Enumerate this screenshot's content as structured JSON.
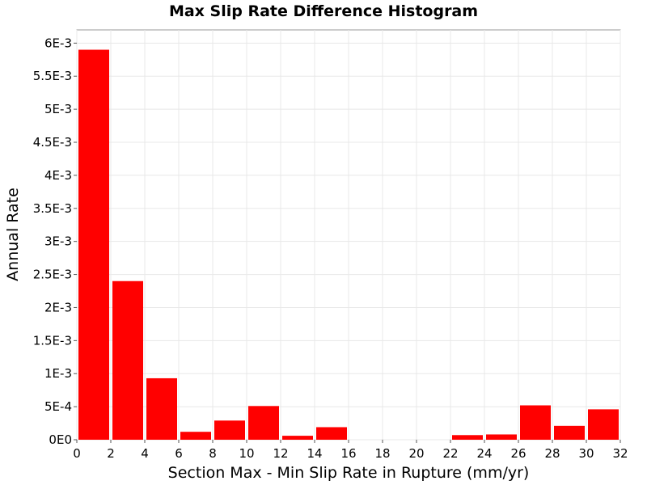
{
  "chart_data": {
    "type": "bar",
    "title": "Max Slip Rate Difference Histogram",
    "xlabel": "Section Max - Min Slip Rate in Rupture (mm/yr)",
    "ylabel": "Annual Rate",
    "xlim": [
      0,
      32
    ],
    "ylim": [
      0,
      0.0062
    ],
    "bin_width": 2,
    "x_ticks": [
      "0",
      "2",
      "4",
      "6",
      "8",
      "10",
      "12",
      "14",
      "16",
      "18",
      "20",
      "22",
      "24",
      "26",
      "28",
      "30",
      "32"
    ],
    "y_ticks": [
      {
        "value": 0,
        "label": "0E0"
      },
      {
        "value": 0.0005,
        "label": "5E-4"
      },
      {
        "value": 0.001,
        "label": "1E-3"
      },
      {
        "value": 0.0015,
        "label": "1.5E-3"
      },
      {
        "value": 0.002,
        "label": "2E-3"
      },
      {
        "value": 0.0025,
        "label": "2.5E-3"
      },
      {
        "value": 0.003,
        "label": "3E-3"
      },
      {
        "value": 0.0035,
        "label": "3.5E-3"
      },
      {
        "value": 0.004,
        "label": "4E-3"
      },
      {
        "value": 0.0045,
        "label": "4.5E-3"
      },
      {
        "value": 0.005,
        "label": "5E-3"
      },
      {
        "value": 0.0055,
        "label": "5.5E-3"
      },
      {
        "value": 0.006,
        "label": "6E-3"
      }
    ],
    "bins": [
      {
        "x_start": 0,
        "x_end": 2,
        "value": 0.0059
      },
      {
        "x_start": 2,
        "x_end": 4,
        "value": 0.0024
      },
      {
        "x_start": 4,
        "x_end": 6,
        "value": 0.00093
      },
      {
        "x_start": 6,
        "x_end": 8,
        "value": 0.00012
      },
      {
        "x_start": 8,
        "x_end": 10,
        "value": 0.00029
      },
      {
        "x_start": 10,
        "x_end": 12,
        "value": 0.00051
      },
      {
        "x_start": 12,
        "x_end": 14,
        "value": 6e-05
      },
      {
        "x_start": 14,
        "x_end": 16,
        "value": 0.00019
      },
      {
        "x_start": 16,
        "x_end": 18,
        "value": 0.0
      },
      {
        "x_start": 18,
        "x_end": 20,
        "value": 0.0
      },
      {
        "x_start": 20,
        "x_end": 22,
        "value": 0.0
      },
      {
        "x_start": 22,
        "x_end": 24,
        "value": 7e-05
      },
      {
        "x_start": 24,
        "x_end": 26,
        "value": 8e-05
      },
      {
        "x_start": 26,
        "x_end": 28,
        "value": 0.00052
      },
      {
        "x_start": 28,
        "x_end": 30,
        "value": 0.00021
      },
      {
        "x_start": 30,
        "x_end": 32,
        "value": 0.00046
      }
    ],
    "bar_color": "#ff0000",
    "grid": true,
    "legend": "none"
  }
}
